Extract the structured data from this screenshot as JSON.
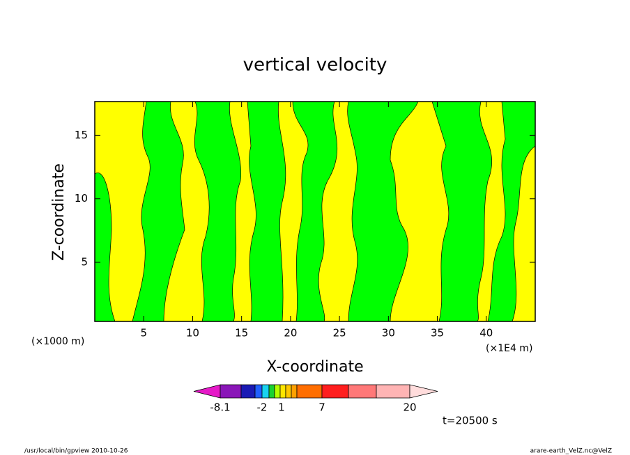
{
  "chart_data": {
    "type": "contour",
    "title": "vertical velocity",
    "x_label": "X-coordinate",
    "y_label": "Z-coordinate",
    "x_unit": "(×1E4 m)",
    "y_unit": "(×1000 m)",
    "xlim": [
      0,
      45
    ],
    "xticks": [
      5,
      10,
      15,
      20,
      25,
      30,
      35,
      40
    ],
    "ylim": [
      0.35,
      17.65
    ],
    "yticks": [
      5,
      10,
      15
    ],
    "field_colors": [
      "#ffff00",
      "#00ff00"
    ],
    "colorbar": {
      "colors": [
        "#e619c8",
        "#8a16b8",
        "#1a1ab4",
        "#2060ff",
        "#19d2f0",
        "#19d232",
        "#b4ff00",
        "#ffe600",
        "#ffc800",
        "#ffa000",
        "#ff6e00",
        "#ff1e1e",
        "#ff7878",
        "#ffb4b4",
        "#ffdcdc"
      ],
      "ticks": [
        -8.1,
        -2,
        1,
        7,
        20
      ]
    },
    "annotation": "t=20500 s",
    "footer_left": "/usr/local/bin/gpview  2010-10-26",
    "footer_right": "arare-earth_VelZ.nc@VelZ"
  }
}
